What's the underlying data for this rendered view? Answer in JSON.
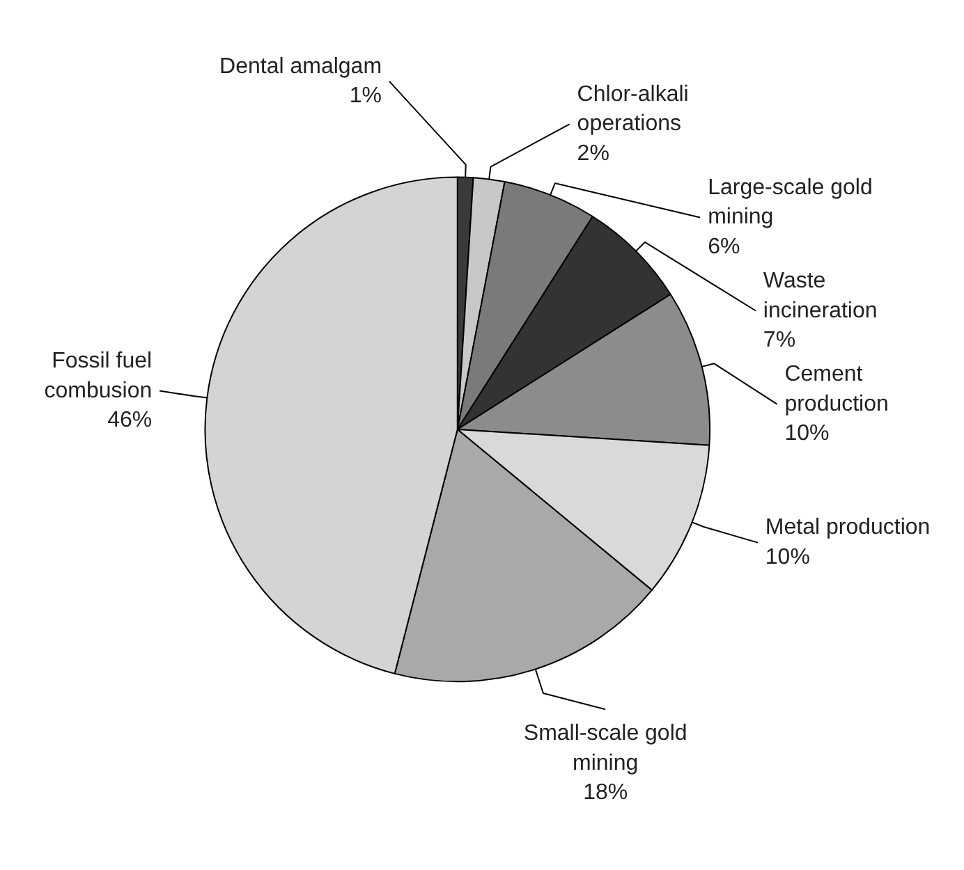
{
  "chart_data": {
    "type": "pie",
    "categories": [
      "Dental amalgam",
      "Chlor-alkali operations",
      "Large-scale gold mining",
      "Waste incineration",
      "Cement production",
      "Metal production",
      "Small-scale gold mining",
      "Fossil fuel combusion"
    ],
    "values": [
      1,
      2,
      6,
      7,
      10,
      10,
      18,
      46
    ],
    "value_labels": [
      "1%",
      "2%",
      "6%",
      "7%",
      "10%",
      "10%",
      "18%",
      "46%"
    ],
    "colors": [
      "#3a3a3a",
      "#c8c8c8",
      "#7a7a7a",
      "#333333",
      "#8c8c8c",
      "#d9d9d9",
      "#a9a9a9",
      "#d4d4d4"
    ]
  }
}
